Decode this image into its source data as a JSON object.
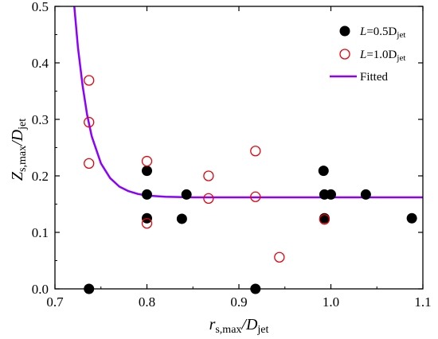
{
  "chart_data": {
    "type": "scatter",
    "xlim": [
      0.7,
      1.1
    ],
    "ylim": [
      0.0,
      0.5
    ],
    "x_ticks": [
      "0.7",
      "0.8",
      "0.9",
      "1.0",
      "1.1"
    ],
    "y_ticks": [
      "0.0",
      "0.1",
      "0.2",
      "0.3",
      "0.4",
      "0.5"
    ],
    "xlabel": {
      "main": "r",
      "sub": "s,max",
      "mid": "/D",
      "sub2": "jet"
    },
    "ylabel": {
      "main": "Z",
      "sub": "s,max",
      "mid": "/D",
      "sub2": "jet"
    },
    "legend_position": "top-right",
    "series": [
      {
        "name": "L=0.5Djet",
        "legend": {
          "main": "L",
          "mid": "=0.5D",
          "sub": "jet"
        },
        "marker": "filled-circle",
        "color": "#000000",
        "points": [
          [
            0.737,
            0.0
          ],
          [
            0.8,
            0.209
          ],
          [
            0.8,
            0.167
          ],
          [
            0.8,
            0.125
          ],
          [
            0.838,
            0.124
          ],
          [
            0.843,
            0.167
          ],
          [
            0.918,
            0.0
          ],
          [
            0.992,
            0.209
          ],
          [
            0.993,
            0.167
          ],
          [
            0.993,
            0.125
          ],
          [
            1.0,
            0.167
          ],
          [
            1.038,
            0.167
          ],
          [
            1.088,
            0.125
          ]
        ]
      },
      {
        "name": "L=1.0Djet",
        "legend": {
          "main": "L",
          "mid": "=1.0D",
          "sub": "jet"
        },
        "marker": "open-circle",
        "color": "#e8000b",
        "points": [
          [
            0.737,
            0.369
          ],
          [
            0.737,
            0.295
          ],
          [
            0.737,
            0.222
          ],
          [
            0.8,
            0.226
          ],
          [
            0.8,
            0.116
          ],
          [
            0.867,
            0.2
          ],
          [
            0.867,
            0.16
          ],
          [
            0.918,
            0.244
          ],
          [
            0.918,
            0.163
          ],
          [
            0.944,
            0.056
          ],
          [
            0.993,
            0.123
          ]
        ]
      },
      {
        "name": "Fitted",
        "legend": {
          "main": "Fitted"
        },
        "marker": "line",
        "color": "#8b00ff",
        "points": [
          [
            0.721,
            0.5
          ],
          [
            0.725,
            0.427
          ],
          [
            0.73,
            0.36
          ],
          [
            0.735,
            0.308
          ],
          [
            0.74,
            0.27
          ],
          [
            0.75,
            0.222
          ],
          [
            0.76,
            0.196
          ],
          [
            0.77,
            0.181
          ],
          [
            0.78,
            0.173
          ],
          [
            0.79,
            0.168
          ],
          [
            0.8,
            0.165
          ],
          [
            0.82,
            0.163
          ],
          [
            0.85,
            0.162
          ],
          [
            0.9,
            0.162
          ],
          [
            1.0,
            0.162
          ],
          [
            1.1,
            0.162
          ]
        ]
      }
    ]
  }
}
